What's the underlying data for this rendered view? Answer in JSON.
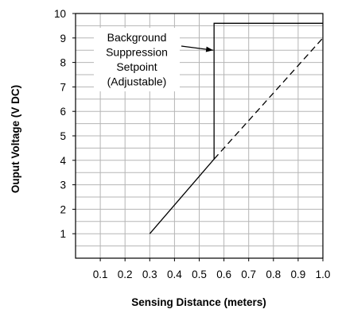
{
  "chart_data": {
    "type": "line",
    "xlabel": "Sensing Distance (meters)",
    "ylabel": "Ouput Voltage (V DC)",
    "xlim": [
      0,
      1.0
    ],
    "ylim": [
      0,
      10
    ],
    "x_ticks": [
      "0.1",
      "0.2",
      "0.3",
      "0.4",
      "0.5",
      "0.6",
      "0.7",
      "0.8",
      "0.9",
      "1.0"
    ],
    "y_ticks": [
      "1",
      "2",
      "3",
      "4",
      "5",
      "6",
      "7",
      "8",
      "9",
      "10"
    ],
    "grid": true,
    "series": [
      {
        "style": "solid",
        "x": [
          0.3,
          0.56,
          0.56,
          1.0
        ],
        "y": [
          1,
          4.05,
          9.6,
          9.6
        ]
      },
      {
        "style": "dashed",
        "x": [
          0.56,
          1.0
        ],
        "y": [
          4.05,
          9.0
        ]
      }
    ],
    "annotation": {
      "lines": [
        "Background",
        "Suppression",
        "Setpoint",
        "(Adjustable)"
      ],
      "points_to": {
        "x": 0.56,
        "y": 8.5
      }
    }
  }
}
